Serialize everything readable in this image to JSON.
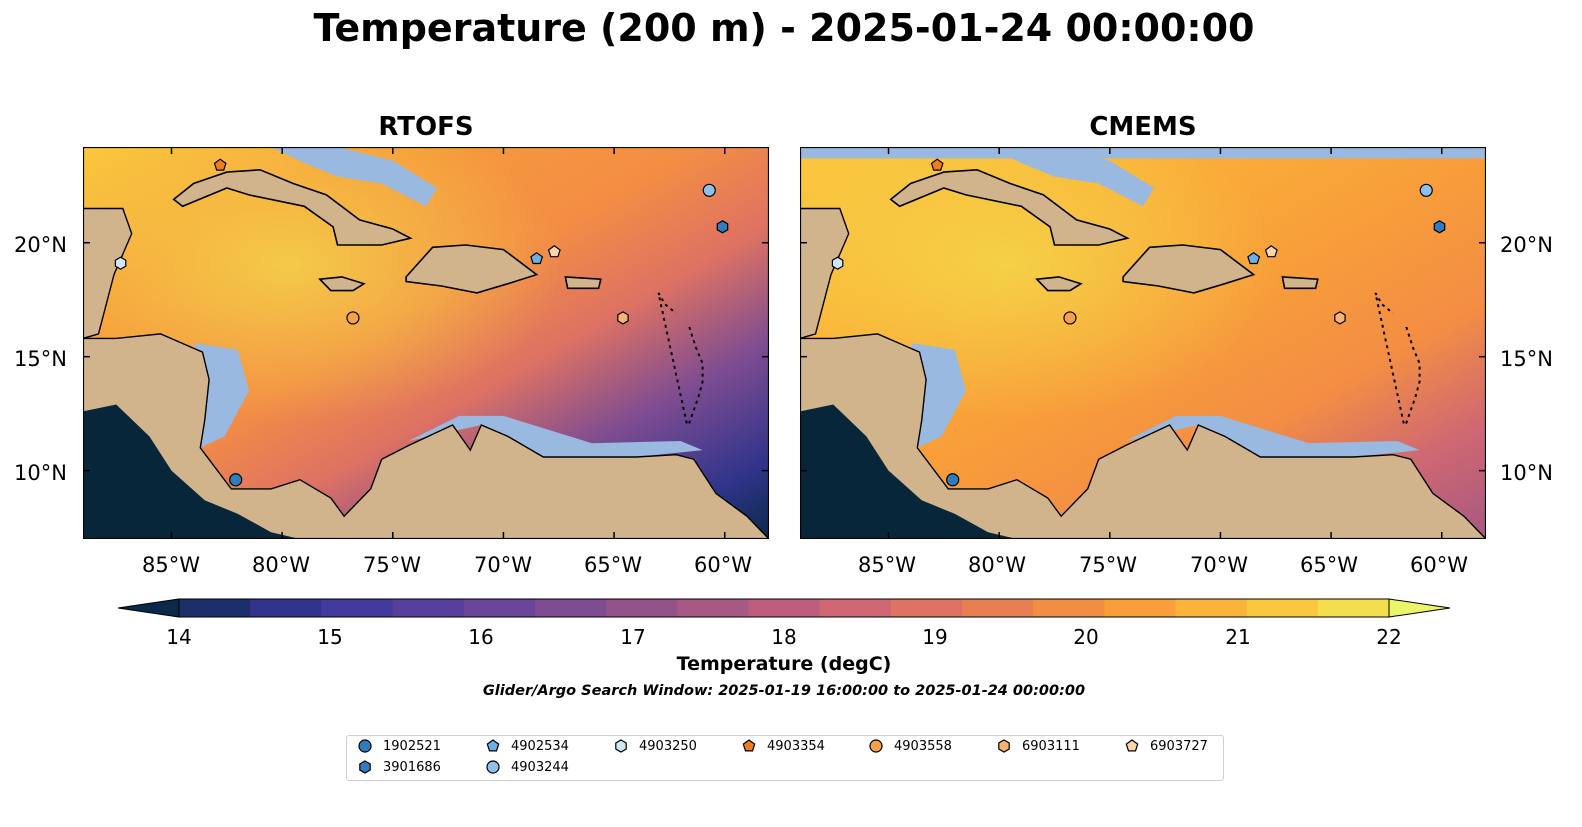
{
  "title": "Temperature (200 m) - 2025-01-24 00:00:00",
  "panels": [
    {
      "title": "RTOFS"
    },
    {
      "title": "CMEMS"
    }
  ],
  "lon_labels": [
    "85°W",
    "80°W",
    "75°W",
    "70°W",
    "65°W",
    "60°W"
  ],
  "lat_labels": [
    "20°N",
    "15°N",
    "10°N"
  ],
  "map_extent": {
    "lon": [
      -89,
      -58
    ],
    "lat": [
      7,
      24.2
    ]
  },
  "colorbar": {
    "title": "Temperature (degC)",
    "ticks": [
      "14",
      "15",
      "16",
      "17",
      "18",
      "19",
      "20",
      "21",
      "22"
    ],
    "range": [
      14,
      22
    ],
    "extend": "both",
    "colors": [
      "#0b2a4a",
      "#1d2f6b",
      "#30348a",
      "#443a9c",
      "#573f9e",
      "#6a4599",
      "#7e4c92",
      "#92528a",
      "#a75883",
      "#bc5f7c",
      "#cf6872",
      "#de7263",
      "#ea7e53",
      "#f38d44",
      "#f89e3a",
      "#fbb238",
      "#fac83e",
      "#f3df4d",
      "#ecf46a"
    ]
  },
  "search_window": "Glider/Argo Search Window: 2025-01-19 16:00:00 to 2025-01-24 00:00:00",
  "legend": [
    {
      "label": "1902521",
      "marker": "circle",
      "color": "#2f7dc0"
    },
    {
      "label": "3901686",
      "marker": "hexagon",
      "color": "#2f7dc0"
    },
    {
      "label": "4902534",
      "marker": "pentagon",
      "color": "#6eaee0"
    },
    {
      "label": "4903244",
      "marker": "circle",
      "color": "#8ec1ea"
    },
    {
      "label": "4903250",
      "marker": "hexagon",
      "color": "#cfe8f8"
    },
    {
      "label": "4903354",
      "marker": "pentagon",
      "color": "#f07d1e"
    },
    {
      "label": "4903558",
      "marker": "circle",
      "color": "#f7a04a"
    },
    {
      "label": "6903111",
      "marker": "hexagon",
      "color": "#f9b470"
    },
    {
      "label": "6903727",
      "marker": "pentagon",
      "color": "#fcd5a8"
    }
  ],
  "floats": [
    {
      "id": "1902521",
      "lon": -82.1,
      "lat": 9.6
    },
    {
      "id": "3901686",
      "lon": -60.1,
      "lat": 20.7
    },
    {
      "id": "4902534",
      "lon": -68.5,
      "lat": 19.3
    },
    {
      "id": "4903244",
      "lon": -60.7,
      "lat": 22.3
    },
    {
      "id": "4903250",
      "lon": -87.3,
      "lat": 19.1
    },
    {
      "id": "4903354",
      "lon": -82.8,
      "lat": 23.4
    },
    {
      "id": "4903558",
      "lon": -76.8,
      "lat": 16.7
    },
    {
      "id": "6903111",
      "lon": -64.6,
      "lat": 16.7
    },
    {
      "id": "6903727",
      "lon": -67.7,
      "lat": 19.6
    }
  ]
}
